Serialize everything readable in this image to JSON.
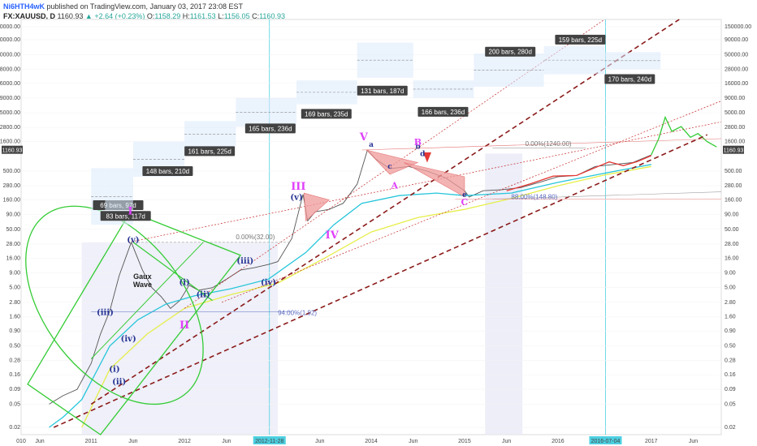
{
  "header": {
    "author": "Ni6HTH4wK",
    "published": "published on TradingView.com, January 03, 2017 23:08 EST",
    "symbol": "FX:XAUUSD, D",
    "last": "1160.93",
    "change": "▲ +2.64 (+0.23%)",
    "o_label": "O:",
    "o": "1158.29",
    "h_label": "H:",
    "h": "1161.53",
    "l_label": "L:",
    "l": "1156.05",
    "c_label": "C:",
    "c": "1160.93"
  },
  "chart_data": {
    "type": "line",
    "scale": "log",
    "ylim": [
      0.015,
      200000
    ],
    "y_ticks": [
      "150000.00",
      "90000.00",
      "50000.00",
      "28000.00",
      "16000.00",
      "9000.00",
      "5000.00",
      "2800.00",
      "1600.00",
      "500.00",
      "280.00",
      "160.00",
      "90.00",
      "50.00",
      "28.00",
      "16.00",
      "9.00",
      "5.00",
      "2.80",
      "1.60",
      "0.90",
      "0.50",
      "0.28",
      "0.16",
      "0.09",
      "0.05",
      "0.02"
    ],
    "x_ticks": [
      "010",
      "Jun",
      "2011",
      "Jun",
      "2012",
      "Jun",
      "2012-11-28",
      "Jun",
      "2014",
      "Jun",
      "2015",
      "Jun",
      "2016",
      "2016-07-04",
      "2017",
      "Jun"
    ],
    "last_price_label": "1160.93",
    "series": [
      {
        "color": "#555555",
        "values": [
          [
            2010.55,
            0.05
          ],
          [
            2010.7,
            0.07
          ],
          [
            2010.85,
            0.09
          ],
          [
            2011.0,
            0.25
          ],
          [
            2011.1,
            0.8
          ],
          [
            2011.2,
            2.0
          ],
          [
            2011.3,
            8
          ],
          [
            2011.43,
            30
          ],
          [
            2011.55,
            10
          ],
          [
            2011.65,
            5
          ],
          [
            2011.75,
            3.5
          ],
          [
            2011.85,
            2.2
          ],
          [
            2011.95,
            3.0
          ],
          [
            2012.05,
            5.5
          ],
          [
            2012.15,
            4.5
          ],
          [
            2012.3,
            5
          ],
          [
            2012.45,
            7
          ],
          [
            2012.6,
            10
          ],
          [
            2012.75,
            11
          ],
          [
            2012.9,
            12.5
          ],
          [
            2013.0,
            14
          ],
          [
            2013.15,
            35
          ],
          [
            2013.27,
            200
          ],
          [
            2013.32,
            70
          ],
          [
            2013.4,
            100
          ],
          [
            2013.55,
            110
          ],
          [
            2013.7,
            140
          ],
          [
            2013.85,
            300
          ],
          [
            2013.96,
            1150
          ],
          [
            2014.05,
            800
          ],
          [
            2014.2,
            550
          ],
          [
            2014.4,
            600
          ],
          [
            2014.6,
            500
          ],
          [
            2014.8,
            380
          ],
          [
            2015.0,
            230
          ],
          [
            2015.05,
            180
          ],
          [
            2015.2,
            230
          ],
          [
            2015.4,
            240
          ],
          [
            2015.6,
            260
          ],
          [
            2015.8,
            320
          ],
          [
            2016.0,
            400
          ],
          [
            2016.2,
            420
          ],
          [
            2016.4,
            600
          ],
          [
            2016.6,
            650
          ],
          [
            2016.8,
            700
          ],
          [
            2017.0,
            950
          ]
        ]
      },
      {
        "color": "#e53935",
        "values": [
          [
            2015.45,
            230
          ],
          [
            2015.7,
            300
          ],
          [
            2015.95,
            410
          ],
          [
            2016.2,
            420
          ],
          [
            2016.45,
            620
          ],
          [
            2016.55,
            720
          ],
          [
            2016.7,
            620
          ],
          [
            2016.85,
            730
          ],
          [
            2017.0,
            920
          ]
        ]
      },
      {
        "color": "#33cc33",
        "values": [
          [
            2017.0,
            950
          ],
          [
            2017.08,
            1800
          ],
          [
            2017.15,
            4200
          ],
          [
            2017.22,
            2400
          ],
          [
            2017.32,
            2900
          ],
          [
            2017.42,
            1900
          ],
          [
            2017.5,
            2200
          ],
          [
            2017.6,
            1600
          ],
          [
            2017.7,
            1300
          ]
        ]
      },
      {
        "color": "#26c6da",
        "values": [
          [
            2010.55,
            0.02
          ],
          [
            2010.7,
            0.03
          ],
          [
            2010.9,
            0.06
          ],
          [
            2011.2,
            0.5
          ],
          [
            2011.5,
            1.4
          ],
          [
            2011.8,
            2.6
          ],
          [
            2012.1,
            3.6
          ],
          [
            2012.5,
            4.8
          ],
          [
            2012.9,
            7
          ],
          [
            2013.3,
            20
          ],
          [
            2013.6,
            60
          ],
          [
            2013.9,
            140
          ],
          [
            2014.3,
            190
          ],
          [
            2014.7,
            210
          ],
          [
            2015.0,
            190
          ],
          [
            2015.5,
            210
          ],
          [
            2016.0,
            320
          ],
          [
            2016.5,
            460
          ],
          [
            2017.0,
            650
          ]
        ]
      },
      {
        "color": "#e6ee4b",
        "values": [
          [
            2010.9,
            0.02
          ],
          [
            2011.2,
            0.2
          ],
          [
            2011.6,
            0.8
          ],
          [
            2012.0,
            2.2
          ],
          [
            2012.5,
            3.8
          ],
          [
            2013.0,
            6
          ],
          [
            2013.5,
            16
          ],
          [
            2014.0,
            45
          ],
          [
            2014.5,
            80
          ],
          [
            2015.0,
            110
          ],
          [
            2015.5,
            170
          ],
          [
            2016.0,
            280
          ],
          [
            2016.5,
            430
          ],
          [
            2017.0,
            600
          ]
        ]
      }
    ],
    "elliott_waves": [
      {
        "label": "I",
        "color": "#e040fb"
      },
      {
        "label": "II",
        "color": "#e040fb"
      },
      {
        "label": "III",
        "color": "#e040fb"
      },
      {
        "label": "IV",
        "color": "#e040fb"
      },
      {
        "label": "V",
        "color": "#e040fb"
      },
      {
        "label": "(i)",
        "color": "#283593"
      },
      {
        "label": "(ii)",
        "color": "#283593"
      },
      {
        "label": "(iii)",
        "color": "#283593"
      },
      {
        "label": "(iv)",
        "color": "#283593"
      },
      {
        "label": "(v)",
        "color": "#283593"
      },
      {
        "label": "(i)",
        "color": "#283593"
      },
      {
        "label": "(ii)",
        "color": "#283593"
      },
      {
        "label": "(iii)",
        "color": "#283593"
      },
      {
        "label": "(iv)",
        "color": "#283593"
      },
      {
        "label": "(v)",
        "color": "#283593"
      },
      {
        "label": "a",
        "color": "#283593"
      },
      {
        "label": "b",
        "color": "#283593"
      },
      {
        "label": "c",
        "color": "#283593"
      },
      {
        "label": "d",
        "color": "#283593"
      },
      {
        "label": "e",
        "color": "#283593"
      },
      {
        "label": "A",
        "color": "#e040fb"
      },
      {
        "label": "B",
        "color": "#e040fb"
      },
      {
        "label": "C",
        "color": "#e040fb"
      }
    ],
    "bar_labels": [
      "69 bars, 97d",
      "83 bars, 117d",
      "148 bars, 210d",
      "161 bars, 225d",
      "165 bars, 236d",
      "169 bars, 235d",
      "131 bars, 187d",
      "166 bars, 236d",
      "200 bars, 280d",
      "159 bars, 225d",
      "170 bars, 240d"
    ],
    "fib_labels": [
      "0.00%(32.00)",
      "94.00%(1.92)",
      "0.00%(1240.00)",
      "88.00%(148.80)"
    ],
    "annotation": "Gaux\nWave",
    "date_markers": [
      "2012-11-28",
      "2016-07-04"
    ]
  }
}
